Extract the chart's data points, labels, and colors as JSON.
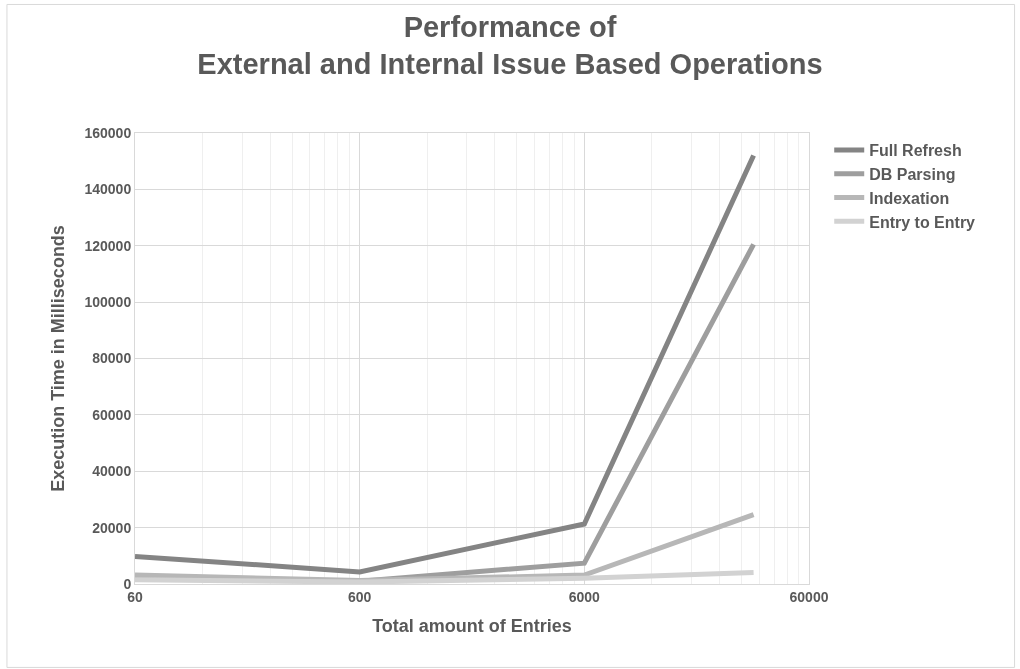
{
  "chart_data": {
    "type": "line",
    "title": "Performance of\nExternal and Internal Issue Based Operations",
    "xlabel": "Total amount of Entries",
    "ylabel": "Execution Time in Milliseconds",
    "x": [
      60,
      600,
      6000,
      34000
    ],
    "series": [
      {
        "name": "Full Refresh",
        "color": "#848484",
        "values": [
          9800,
          4300,
          21300,
          152000
        ]
      },
      {
        "name": "DB Parsing",
        "color": "#9e9e9e",
        "values": [
          2500,
          1000,
          7400,
          120500
        ]
      },
      {
        "name": "Indexation",
        "color": "#b7b7b7",
        "values": [
          3200,
          1200,
          3200,
          24600
        ]
      },
      {
        "name": "Entry to Entry",
        "color": "#d2d2d2",
        "values": [
          1500,
          700,
          2000,
          4100
        ]
      }
    ],
    "log": "x",
    "xlim": [
      60,
      60000
    ],
    "xticks": [
      60,
      600,
      6000,
      60000
    ],
    "ylim": [
      0,
      160000
    ],
    "yticks": [
      0,
      20000,
      40000,
      60000,
      80000,
      100000,
      120000,
      140000,
      160000
    ],
    "grid": true,
    "legend": "top right",
    "marker": "none",
    "line_style": "solid"
  }
}
